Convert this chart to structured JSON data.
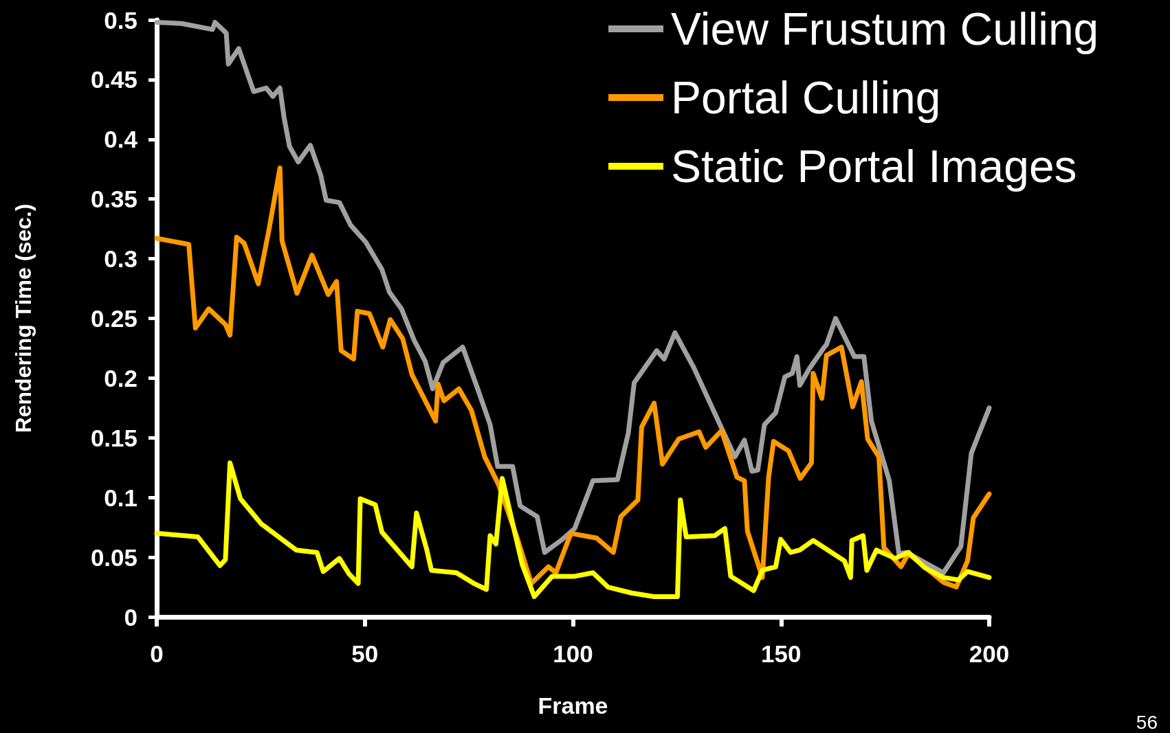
{
  "chart_data": {
    "type": "line",
    "xlabel": "Frame",
    "ylabel": "Rendering Time (sec.)",
    "xlim": [
      0,
      200
    ],
    "xticks": [
      0,
      50,
      100,
      150,
      200
    ],
    "ylim": [
      0,
      0.5
    ],
    "yticks": [
      0,
      0.05,
      0.1,
      0.15,
      0.2,
      0.25,
      0.3,
      0.35,
      0.4,
      0.45,
      0.5
    ],
    "grid": false,
    "legend": "top right",
    "marker": "none",
    "line_style": "solid",
    "annotations": [
      "56"
    ],
    "series": [
      {
        "name": "View Frustum Culling",
        "color": "#a0a0a0",
        "x": [
          0,
          6,
          13.4,
          14,
          16.7,
          17.2,
          19.7,
          23.3,
          26.3,
          27.9,
          29.6,
          30.6,
          31.9,
          34,
          36.9,
          39.4,
          40.7,
          43.9,
          46.6,
          50.2,
          54.1,
          55.9,
          58.8,
          61.8,
          64.5,
          66.3,
          68.8,
          73.5,
          77,
          80.1,
          81.9,
          85.5,
          87.3,
          91.4,
          93.2,
          97.1,
          100.4,
          104.8,
          110.7,
          113.3,
          114.7,
          120.1,
          121.9,
          124.5,
          129,
          134.4,
          138.9,
          141.2,
          143,
          144.4,
          146,
          148.7,
          150.9,
          152.7,
          153.8,
          154.5,
          156.8,
          160.4,
          160.9,
          163.1,
          167.6,
          169.9,
          171.7,
          176,
          178.3,
          180.1,
          189,
          193.2,
          195.7,
          200
        ],
        "values": [
          0.498,
          0.497,
          0.492,
          0.498,
          0.489,
          0.463,
          0.476,
          0.44,
          0.443,
          0.436,
          0.443,
          0.418,
          0.394,
          0.381,
          0.395,
          0.37,
          0.349,
          0.347,
          0.328,
          0.314,
          0.291,
          0.272,
          0.258,
          0.232,
          0.214,
          0.191,
          0.213,
          0.226,
          0.192,
          0.161,
          0.126,
          0.126,
          0.093,
          0.084,
          0.054,
          0.064,
          0.074,
          0.114,
          0.115,
          0.154,
          0.196,
          0.223,
          0.216,
          0.238,
          0.209,
          0.168,
          0.134,
          0.148,
          0.122,
          0.123,
          0.161,
          0.171,
          0.201,
          0.204,
          0.218,
          0.194,
          0.208,
          0.226,
          0.228,
          0.25,
          0.218,
          0.218,
          0.164,
          0.114,
          0.053,
          0.054,
          0.037,
          0.059,
          0.137,
          0.175
        ]
      },
      {
        "name": "Portal Culling",
        "color": "#ff9900",
        "x": [
          0,
          7.7,
          9.3,
          12.5,
          16.5,
          17.6,
          19.2,
          21,
          24.4,
          26.9,
          29.6,
          30.1,
          33.7,
          37.3,
          41.2,
          43.2,
          44.3,
          47.3,
          48.2,
          51.1,
          54.3,
          56.1,
          59.1,
          61.3,
          67,
          67.6,
          69,
          72.6,
          75.6,
          78.8,
          82.1,
          86.6,
          90,
          94.1,
          95.9,
          99.5,
          105.7,
          109.7,
          111.5,
          115.6,
          116.5,
          119.5,
          121.5,
          125.4,
          130.3,
          131.9,
          135.7,
          139.4,
          141.2,
          141.9,
          145.5,
          147,
          148.2,
          151.8,
          154.6,
          157.3,
          157.7,
          159.8,
          160.9,
          164.5,
          167.2,
          169.3,
          170.8,
          173.5,
          174.7,
          178.8,
          180.6,
          189,
          192.1,
          194.8,
          196.2,
          200
        ],
        "values": [
          0.317,
          0.312,
          0.242,
          0.258,
          0.245,
          0.236,
          0.318,
          0.313,
          0.279,
          0.323,
          0.376,
          0.315,
          0.271,
          0.303,
          0.27,
          0.281,
          0.223,
          0.216,
          0.256,
          0.254,
          0.226,
          0.249,
          0.233,
          0.203,
          0.164,
          0.195,
          0.181,
          0.191,
          0.173,
          0.134,
          0.111,
          0.066,
          0.028,
          0.042,
          0.037,
          0.07,
          0.066,
          0.054,
          0.084,
          0.098,
          0.159,
          0.179,
          0.128,
          0.149,
          0.155,
          0.142,
          0.156,
          0.117,
          0.114,
          0.072,
          0.033,
          0.117,
          0.147,
          0.139,
          0.116,
          0.129,
          0.204,
          0.183,
          0.219,
          0.226,
          0.176,
          0.197,
          0.149,
          0.134,
          0.058,
          0.042,
          0.053,
          0.029,
          0.025,
          0.047,
          0.083,
          0.103
        ]
      },
      {
        "name": "Static Portal Images",
        "color": "#ffff00",
        "x": [
          0,
          9.9,
          15.2,
          16.5,
          17.6,
          20.1,
          25.1,
          33.5,
          38.5,
          40,
          43.9,
          46.2,
          48.4,
          48.9,
          52.5,
          54.1,
          61.3,
          62.4,
          64.9,
          66,
          72,
          76.2,
          79.2,
          80.1,
          81.5,
          83,
          87.8,
          90.7,
          95,
          100.4,
          104.8,
          108.4,
          114.1,
          119.5,
          125.1,
          125.8,
          127.2,
          134,
          136.5,
          137.9,
          143.4,
          145.5,
          148.7,
          149.9,
          152.3,
          154.5,
          157.7,
          165.2,
          166.7,
          167,
          169.7,
          170.6,
          172.9,
          177.4,
          180.6,
          184.6,
          189,
          192.6,
          194.8,
          200
        ],
        "values": [
          0.07,
          0.067,
          0.043,
          0.048,
          0.129,
          0.099,
          0.078,
          0.056,
          0.054,
          0.038,
          0.049,
          0.036,
          0.028,
          0.099,
          0.094,
          0.071,
          0.042,
          0.087,
          0.056,
          0.039,
          0.037,
          0.028,
          0.023,
          0.068,
          0.061,
          0.116,
          0.044,
          0.017,
          0.034,
          0.034,
          0.037,
          0.025,
          0.02,
          0.017,
          0.017,
          0.098,
          0.067,
          0.068,
          0.074,
          0.034,
          0.022,
          0.039,
          0.042,
          0.065,
          0.054,
          0.056,
          0.064,
          0.047,
          0.033,
          0.064,
          0.068,
          0.039,
          0.056,
          0.049,
          0.054,
          0.041,
          0.033,
          0.031,
          0.038,
          0.033
        ]
      }
    ]
  }
}
